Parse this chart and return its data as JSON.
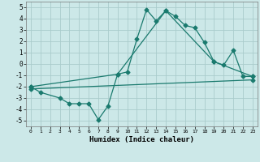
{
  "title": "",
  "xlabel": "Humidex (Indice chaleur)",
  "bg_color": "#cce8e8",
  "grid_color": "#aacccc",
  "line_color": "#1a7a6e",
  "xlim": [
    -0.5,
    23.5
  ],
  "ylim": [
    -5.5,
    5.5
  ],
  "xticks": [
    0,
    1,
    2,
    3,
    4,
    5,
    6,
    7,
    8,
    9,
    10,
    11,
    12,
    13,
    14,
    15,
    16,
    17,
    18,
    19,
    20,
    21,
    22,
    23
  ],
  "yticks": [
    -5,
    -4,
    -3,
    -2,
    -1,
    0,
    1,
    2,
    3,
    4,
    5
  ],
  "line1_x": [
    0,
    1,
    3,
    4,
    5,
    6,
    7,
    8,
    9,
    10,
    11,
    12,
    13,
    14,
    15,
    16,
    17,
    18,
    19,
    20,
    21,
    22,
    23
  ],
  "line1_y": [
    -2.0,
    -2.5,
    -3.0,
    -3.5,
    -3.5,
    -3.5,
    -4.9,
    -3.7,
    -0.9,
    -0.7,
    2.2,
    4.8,
    3.8,
    4.7,
    4.2,
    3.4,
    3.2,
    1.9,
    0.2,
    -0.1,
    1.2,
    -1.1,
    -1.1
  ],
  "line2_x": [
    0,
    9,
    14,
    19,
    23
  ],
  "line2_y": [
    -2.0,
    -0.9,
    4.7,
    0.2,
    -1.1
  ],
  "line3_x": [
    0,
    23
  ],
  "line3_y": [
    -2.2,
    -1.4
  ],
  "marker": "D",
  "markersize": 2.5,
  "linewidth": 0.9
}
